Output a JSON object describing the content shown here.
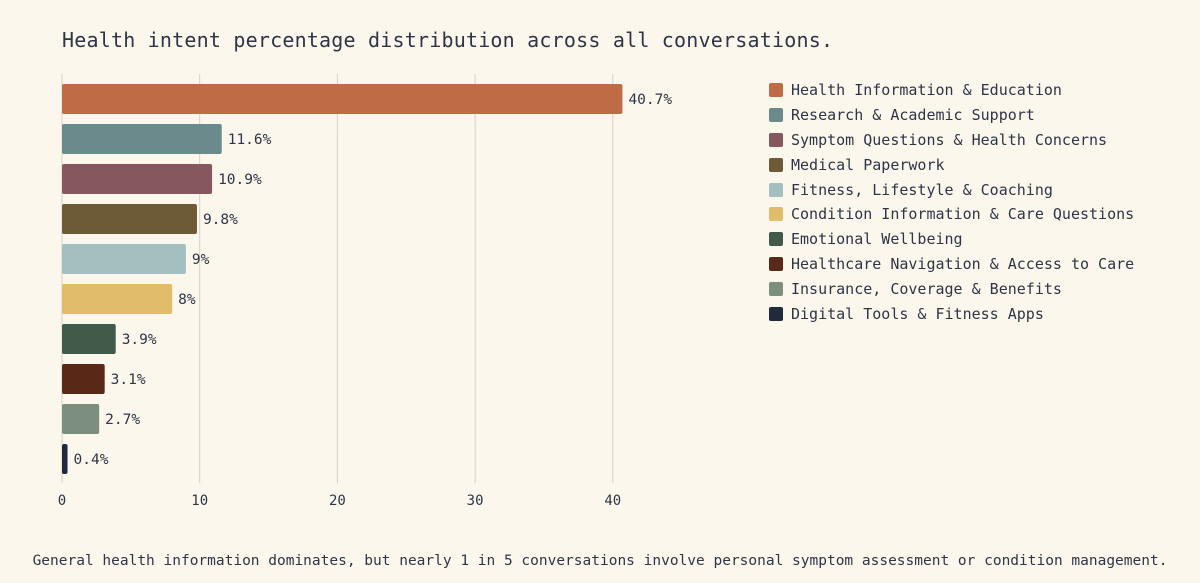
{
  "chart_data": {
    "type": "bar",
    "orientation": "horizontal",
    "title": "Health intent percentage distribution across all conversations.",
    "categories": [
      "Health Information & Education",
      "Research & Academic Support",
      "Symptom Questions & Health Concerns",
      "Medical Paperwork",
      "Fitness, Lifestyle & Coaching",
      "Condition Information & Care Questions",
      "Emotional Wellbeing",
      "Healthcare Navigation & Access to Care",
      "Insurance, Coverage & Benefits",
      "Digital Tools & Fitness Apps"
    ],
    "values": [
      40.7,
      11.6,
      10.9,
      9.8,
      9,
      8,
      3.9,
      3.1,
      2.7,
      0.4
    ],
    "value_labels": [
      "40.7%",
      "11.6%",
      "10.9%",
      "9.8%",
      "9%",
      "8%",
      "3.9%",
      "3.1%",
      "2.7%",
      "0.4%"
    ],
    "colors": [
      "#bf6b45",
      "#6b8a8c",
      "#87575f",
      "#6d5a36",
      "#a3bfc0",
      "#e0bc6b",
      "#415a49",
      "#5a2817",
      "#7c8e7d",
      "#1f2a3a"
    ],
    "xlim": [
      0,
      42
    ],
    "xticks": [
      0,
      10,
      20,
      30,
      40
    ],
    "xlabel": "",
    "ylabel": "",
    "grid": "vertical",
    "legend_position": "right"
  },
  "caption": "General health information dominates, but nearly 1 in 5 conversations involve personal symptom assessment or condition management."
}
